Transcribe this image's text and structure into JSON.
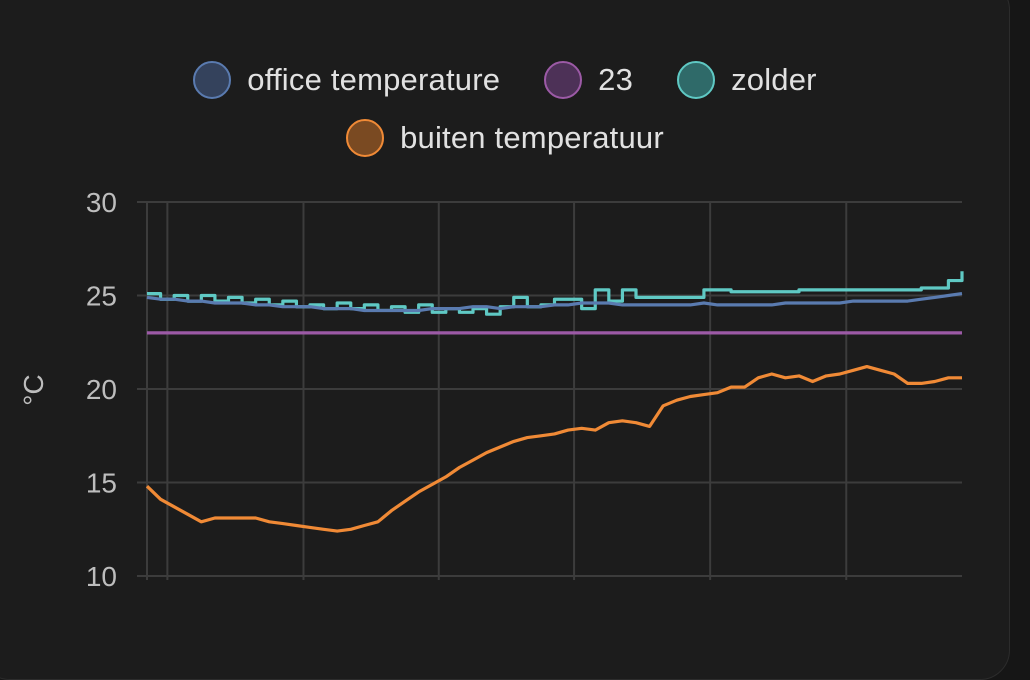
{
  "chart_data": {
    "type": "line",
    "ylabel": "°C",
    "ylim": [
      10,
      30
    ],
    "yticks": [
      10,
      15,
      20,
      25,
      30
    ],
    "grid": true,
    "legend_position": "top-center",
    "x": [
      0,
      1,
      2,
      3,
      4,
      5,
      6,
      7,
      8,
      9,
      10,
      11,
      12,
      13,
      14,
      15,
      16,
      17,
      18,
      19,
      20,
      21,
      22,
      23,
      24,
      25,
      26,
      27,
      28,
      29,
      30,
      31,
      32,
      33,
      34,
      35,
      36,
      37,
      38,
      39,
      40,
      41,
      42,
      43,
      44,
      45,
      46,
      47,
      48,
      49,
      50,
      51,
      52,
      53,
      54,
      55,
      56,
      57,
      58,
      59,
      60
    ],
    "series": [
      {
        "name": "office temperature",
        "color": "#5a7bb0",
        "values": [
          24.9,
          24.8,
          24.8,
          24.7,
          24.7,
          24.6,
          24.6,
          24.6,
          24.5,
          24.5,
          24.4,
          24.4,
          24.4,
          24.3,
          24.3,
          24.3,
          24.2,
          24.2,
          24.2,
          24.2,
          24.2,
          24.3,
          24.3,
          24.3,
          24.4,
          24.4,
          24.3,
          24.4,
          24.4,
          24.4,
          24.5,
          24.5,
          24.6,
          24.6,
          24.6,
          24.5,
          24.5,
          24.5,
          24.5,
          24.5,
          24.5,
          24.6,
          24.5,
          24.5,
          24.5,
          24.5,
          24.5,
          24.6,
          24.6,
          24.6,
          24.6,
          24.6,
          24.7,
          24.7,
          24.7,
          24.7,
          24.7,
          24.8,
          24.9,
          25.0,
          25.1
        ]
      },
      {
        "name": "23",
        "color": "#9c5aa6",
        "values": [
          23,
          23,
          23,
          23,
          23,
          23,
          23,
          23,
          23,
          23,
          23,
          23,
          23,
          23,
          23,
          23,
          23,
          23,
          23,
          23,
          23,
          23,
          23,
          23,
          23,
          23,
          23,
          23,
          23,
          23,
          23,
          23,
          23,
          23,
          23,
          23,
          23,
          23,
          23,
          23,
          23,
          23,
          23,
          23,
          23,
          23,
          23,
          23,
          23,
          23,
          23,
          23,
          23,
          23,
          23,
          23,
          23,
          23,
          23,
          23,
          23
        ]
      },
      {
        "name": "zolder",
        "color": "#5fc9c4",
        "values": [
          25.1,
          24.8,
          25.0,
          24.7,
          25.0,
          24.7,
          24.9,
          24.6,
          24.8,
          24.5,
          24.7,
          24.4,
          24.5,
          24.3,
          24.6,
          24.3,
          24.5,
          24.2,
          24.4,
          24.1,
          24.5,
          24.1,
          24.3,
          24.1,
          24.3,
          24.0,
          24.4,
          24.9,
          24.4,
          24.5,
          24.8,
          24.8,
          24.3,
          25.3,
          24.7,
          25.3,
          24.9,
          24.9,
          24.9,
          24.9,
          24.9,
          25.3,
          25.3,
          25.2,
          25.2,
          25.2,
          25.2,
          25.2,
          25.3,
          25.3,
          25.3,
          25.3,
          25.3,
          25.3,
          25.3,
          25.3,
          25.3,
          25.4,
          25.4,
          25.8,
          26.3
        ]
      },
      {
        "name": "buiten temperatuur",
        "color": "#f08a36",
        "values": [
          14.8,
          14.1,
          13.7,
          13.3,
          12.9,
          13.1,
          13.1,
          13.1,
          13.1,
          12.9,
          12.8,
          12.7,
          12.6,
          12.5,
          12.4,
          12.5,
          12.7,
          12.9,
          13.5,
          14.0,
          14.5,
          14.9,
          15.3,
          15.8,
          16.2,
          16.6,
          16.9,
          17.2,
          17.4,
          17.5,
          17.6,
          17.8,
          17.9,
          17.8,
          18.2,
          18.3,
          18.2,
          18.0,
          19.1,
          19.4,
          19.6,
          19.7,
          19.8,
          20.1,
          20.1,
          20.6,
          20.8,
          20.6,
          20.7,
          20.4,
          20.7,
          20.8,
          21.0,
          21.2,
          21.0,
          20.8,
          20.3,
          20.3,
          20.4,
          20.6,
          20.6
        ]
      }
    ]
  }
}
